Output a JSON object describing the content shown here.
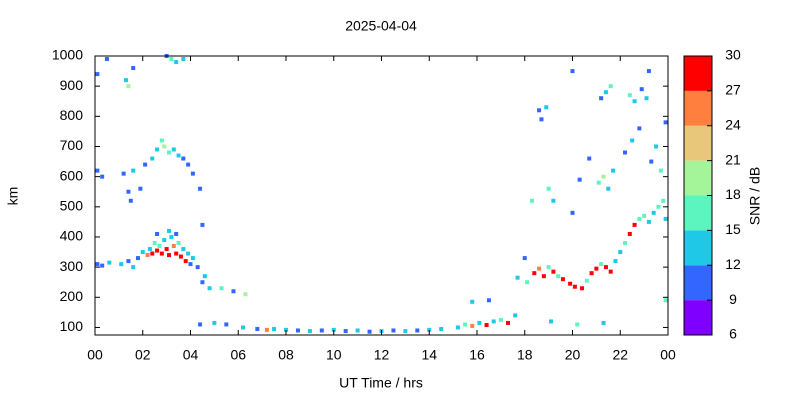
{
  "chart_data": {
    "type": "heatmap-scatter",
    "title": "2025-04-04",
    "xlabel": "UT Time / hrs",
    "ylabel": "km",
    "colorbar_label": "SNR / dB",
    "xlim": [
      0,
      24
    ],
    "xticks": [
      {
        "value": 0,
        "label": "00"
      },
      {
        "value": 2,
        "label": "02"
      },
      {
        "value": 4,
        "label": "04"
      },
      {
        "value": 6,
        "label": "06"
      },
      {
        "value": 8,
        "label": "08"
      },
      10,
      12,
      14,
      16,
      18,
      20,
      22,
      {
        "value": 24,
        "label": "00"
      }
    ],
    "ylim": [
      75,
      1000
    ],
    "yticks": [
      100,
      200,
      300,
      400,
      500,
      600,
      700,
      800,
      900,
      1000
    ],
    "clim": [
      6,
      30
    ],
    "cticks": [
      6,
      9,
      12,
      15,
      18,
      21,
      24,
      27,
      30
    ],
    "colormap": [
      "#8000ff",
      "#3366ff",
      "#1ec8e6",
      "#5cf5c0",
      "#a4f59a",
      "#e9c77a",
      "#ff7f3f",
      "#ff0000"
    ],
    "x": [
      0.1,
      0.3,
      0.6,
      1.1,
      1.4,
      1.6,
      1.8,
      2.0,
      2.2,
      2.3,
      2.4,
      2.5,
      2.6,
      2.7,
      2.8,
      2.9,
      3.0,
      3.1,
      3.2,
      3.3,
      3.4,
      3.5,
      3.6,
      3.7,
      3.8,
      3.9,
      4.0,
      4.1,
      4.3,
      4.5,
      4.6,
      2.6,
      3.1,
      3.4,
      0.1,
      0.3,
      1.2,
      1.4,
      1.6,
      1.9,
      2.1,
      2.4,
      2.6,
      2.8,
      2.9,
      3.1,
      3.3,
      3.5,
      3.7,
      3.9,
      4.1,
      4.4,
      1.5,
      0.1,
      0.5,
      1.3,
      1.4,
      1.6,
      3.2,
      3.4,
      3.7,
      3.0,
      4.5,
      4.8,
      5.3,
      5.8,
      6.3,
      4.4,
      5.0,
      5.5,
      6.2,
      6.8,
      7.2,
      7.5,
      8,
      8.5,
      9,
      9.5,
      10,
      10.5,
      11,
      11.5,
      12,
      12.5,
      13,
      13.5,
      14,
      14.5,
      15.2,
      15.5,
      15.8,
      16.1,
      16.4,
      16.7,
      17.0,
      17.3,
      17.6,
      15.8,
      16.5,
      17.7,
      18.1,
      18.0,
      18.4,
      18.6,
      18.8,
      19.0,
      19.2,
      19.4,
      19.6,
      19.9,
      20.1,
      20.4,
      20.6,
      20.8,
      21.0,
      21.2,
      21.4,
      21.6,
      21.8,
      22.0,
      22.2,
      22.4,
      22.6,
      22.8,
      23.0,
      23.2,
      23.4,
      23.6,
      23.8,
      23.9,
      18.6,
      18.9,
      18.7,
      19.0,
      19.2,
      18.3,
      20.3,
      20.0,
      20.7,
      21.1,
      21.3,
      21.5,
      21.7,
      21.2,
      21.4,
      21.6,
      22.4,
      22.6,
      22.9,
      23.1,
      22.2,
      22.5,
      22.8,
      23.3,
      23.5,
      23.7,
      23.9,
      23.2,
      20.0,
      19.1,
      20.2,
      21.3,
      23.9
    ],
    "y": [
      310,
      305,
      315,
      310,
      320,
      300,
      330,
      350,
      340,
      360,
      345,
      380,
      355,
      370,
      345,
      390,
      360,
      340,
      400,
      370,
      345,
      380,
      335,
      360,
      320,
      345,
      310,
      330,
      300,
      250,
      270,
      410,
      420,
      410,
      620,
      600,
      610,
      550,
      620,
      560,
      640,
      660,
      690,
      720,
      700,
      680,
      690,
      670,
      660,
      640,
      610,
      560,
      520,
      940,
      990,
      920,
      900,
      960,
      990,
      980,
      990,
      1000,
      440,
      230,
      230,
      220,
      210,
      110,
      115,
      110,
      100,
      95,
      92,
      95,
      92,
      90,
      88,
      90,
      92,
      88,
      90,
      86,
      88,
      90,
      88,
      90,
      92,
      95,
      100,
      110,
      105,
      115,
      108,
      120,
      125,
      115,
      140,
      185,
      190,
      265,
      250,
      330,
      280,
      295,
      270,
      300,
      285,
      270,
      260,
      245,
      235,
      230,
      255,
      280,
      295,
      310,
      300,
      285,
      320,
      350,
      380,
      410,
      440,
      460,
      470,
      450,
      480,
      500,
      520,
      460,
      820,
      830,
      790,
      560,
      520,
      520,
      590,
      480,
      660,
      580,
      600,
      560,
      620,
      860,
      880,
      900,
      870,
      850,
      890,
      860,
      680,
      720,
      760,
      650,
      700,
      620,
      780,
      950,
      950,
      120,
      110,
      115,
      190
    ],
    "values": [
      10,
      10,
      13,
      12,
      10,
      13,
      10,
      12,
      24,
      13,
      28,
      15,
      29,
      16,
      29,
      13,
      28,
      29,
      12,
      24,
      28,
      16,
      29,
      14,
      28,
      12,
      10,
      13,
      10,
      10,
      12,
      10,
      12,
      10,
      10,
      10,
      10,
      10,
      12,
      10,
      10,
      12,
      14,
      16,
      19,
      15,
      13,
      12,
      10,
      11,
      10,
      10,
      10,
      10,
      10,
      12,
      19,
      10,
      16,
      13,
      12,
      10,
      10,
      14,
      16,
      10,
      18,
      10,
      12,
      10,
      12,
      10,
      26,
      13,
      12,
      10,
      13,
      10,
      12,
      10,
      13,
      10,
      12,
      10,
      13,
      10,
      12,
      13,
      12,
      16,
      24,
      14,
      28,
      13,
      15,
      29,
      13,
      12,
      10,
      13,
      15,
      10,
      28,
      24,
      29,
      16,
      28,
      15,
      28,
      27,
      29,
      28,
      15,
      29,
      28,
      16,
      29,
      28,
      14,
      13,
      15,
      28,
      27,
      15,
      16,
      13,
      12,
      16,
      15,
      12,
      10,
      12,
      10,
      16,
      12,
      15,
      10,
      10,
      10,
      16,
      19,
      13,
      12,
      10,
      13,
      16,
      15,
      13,
      10,
      12,
      10,
      12,
      10,
      10,
      12,
      15,
      10,
      10,
      10,
      13,
      15,
      12,
      15
    ]
  }
}
